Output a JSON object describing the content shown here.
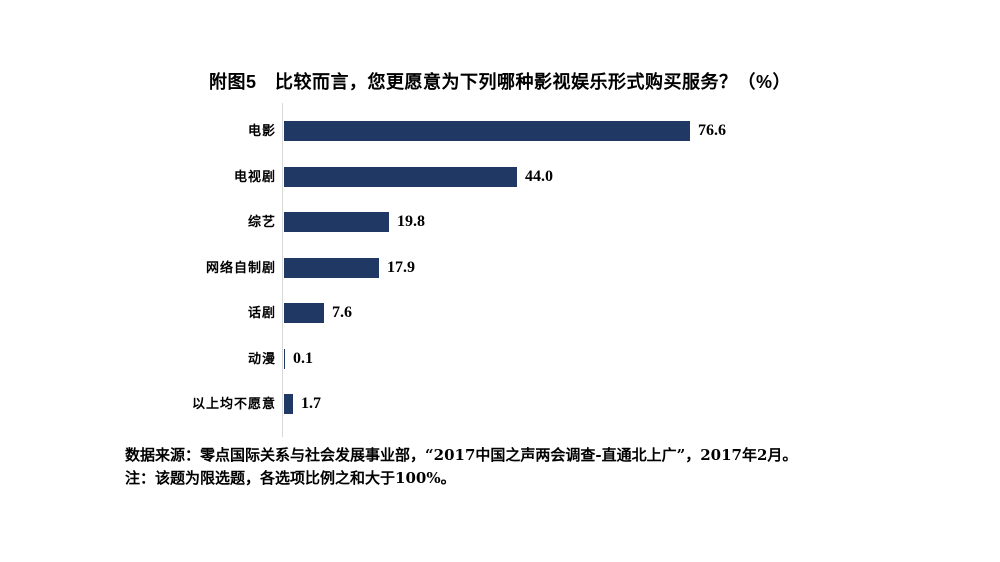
{
  "title": "附图5　比较而言，您更愿意为下列哪种影视娱乐形式购买服务？（%）",
  "chart_data": {
    "type": "bar",
    "orientation": "horizontal",
    "title": "附图5　比较而言，您更愿意为下列哪种影视娱乐形式购买服务？（%）",
    "categories": [
      "电影",
      "电视剧",
      "综艺",
      "网络自制剧",
      "话剧",
      "动漫",
      "以上均不愿意"
    ],
    "values": [
      76.6,
      44.0,
      19.8,
      17.9,
      7.6,
      0.1,
      1.7
    ],
    "value_labels": [
      "76.6",
      "44.0",
      "19.8",
      "17.9",
      "7.6",
      "0.1",
      "1.7"
    ],
    "xlabel": "",
    "ylabel": "",
    "xlim": [
      0,
      80
    ],
    "grid": false,
    "legend": false,
    "bar_color": "#1f3864",
    "axis_color": "#d9d9d9"
  },
  "footer": {
    "source_line": "数据来源：零点国际关系与社会发展事业部，“2017中国之声两会调查-直通北上广”，2017年2月。",
    "note_line": "注：该题为限选题，各选项比例之和大于100%。"
  }
}
